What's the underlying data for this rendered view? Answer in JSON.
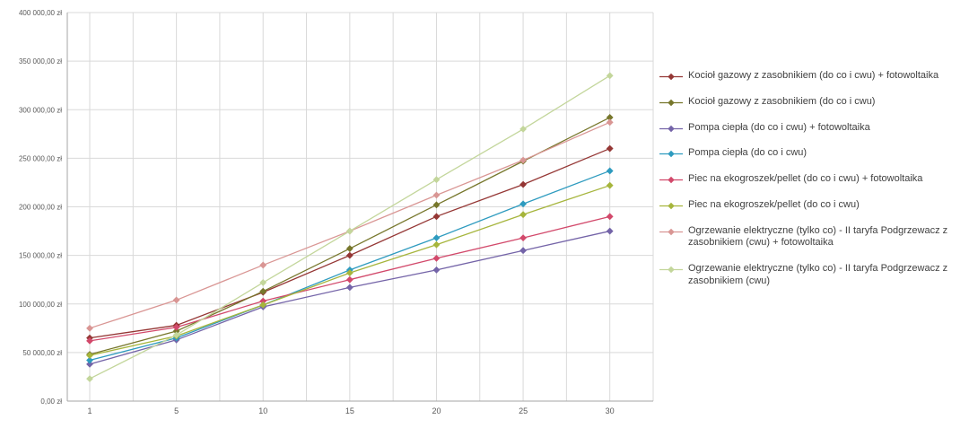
{
  "chart_data": {
    "type": "line",
    "title": "",
    "xlabel": "",
    "ylabel": "",
    "x": [
      1,
      5,
      10,
      15,
      20,
      25,
      30
    ],
    "x_tick_labels": [
      "1",
      "5",
      "10",
      "15",
      "20",
      "25",
      "30"
    ],
    "y_tick_labels": [
      "0,00 zł",
      "50 000,00 zł",
      "100 000,00 zł",
      "150 000,00 zł",
      "200 000,00 zł",
      "250 000,00 zł",
      "300 000,00 zł",
      "350 000,00 zł",
      "400 000,00 zł"
    ],
    "ylim": [
      0,
      400000
    ],
    "y_gridline_step": 50000,
    "grid": true,
    "marker": "diamond",
    "legend_position": "right",
    "colors": {
      "gridline": "#d9d9d9",
      "axis": "#a6a6a6",
      "tick_text": "#595959",
      "legend_text": "#404040"
    },
    "series": [
      {
        "name": "Kocioł gazowy z zasobnikiem (do co i cwu) + fotowoltaika",
        "color": "#953735",
        "values": [
          65000,
          78000,
          112000,
          150000,
          190000,
          223000,
          260000
        ]
      },
      {
        "name": "Kocioł gazowy z zasobnikiem (do co i cwu)",
        "color": "#77772c",
        "values": [
          48000,
          72000,
          113000,
          157000,
          202000,
          247000,
          292000
        ]
      },
      {
        "name": "Pompa ciepła (do co i cwu) + fotowoltaika",
        "color": "#7464a8",
        "values": [
          38000,
          63000,
          97000,
          117000,
          135000,
          155000,
          175000
        ]
      },
      {
        "name": "Pompa ciepła (do co i cwu)",
        "color": "#2e9bbf",
        "values": [
          42000,
          65000,
          99000,
          135000,
          168000,
          203000,
          237000
        ]
      },
      {
        "name": "Piec na ekogroszek/pellet (do co i cwu) + fotowoltaika",
        "color": "#d2496b",
        "values": [
          62000,
          76000,
          103000,
          125000,
          147000,
          168000,
          190000
        ]
      },
      {
        "name": "Piec na ekogroszek/pellet (do co i cwu)",
        "color": "#a6b53c",
        "values": [
          47000,
          67000,
          99000,
          132000,
          161000,
          192000,
          222000
        ]
      },
      {
        "name": "Ogrzewanie elektryczne (tylko co) - II taryfa Podgrzewacz z zasobnikiem (cwu) + fotowoltaika",
        "color": "#d99694",
        "values": [
          75000,
          104000,
          140000,
          175000,
          212000,
          248000,
          287000
        ]
      },
      {
        "name": "Ogrzewanie elektryczne (tylko co) - II taryfa Podgrzewacz z zasobnikiem (cwu)",
        "color": "#c3d69b",
        "values": [
          23000,
          68000,
          122000,
          175000,
          228000,
          280000,
          335000
        ]
      }
    ]
  }
}
